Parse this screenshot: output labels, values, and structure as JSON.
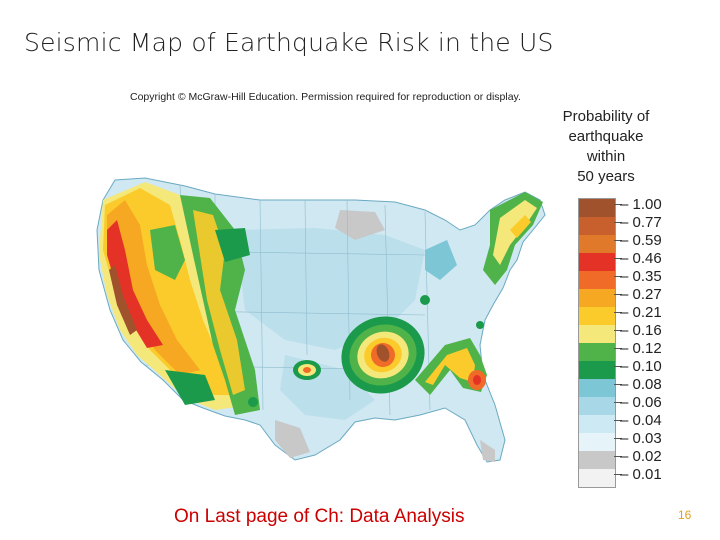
{
  "title": "Seismic Map of Earthquake Risk in the US",
  "copyright": "Copyright © McGraw-Hill Education. Permission required for reproduction or display.",
  "legend": {
    "title_lines": [
      "Probability of",
      "earthquake",
      "within",
      "50 years"
    ],
    "entries": [
      {
        "label": "1.00",
        "color": "#a0522d"
      },
      {
        "label": "0.77",
        "color": "#c8602e"
      },
      {
        "label": "0.59",
        "color": "#e07a2a"
      },
      {
        "label": "0.46",
        "color": "#e53227"
      },
      {
        "label": "0.35",
        "color": "#f06a28"
      },
      {
        "label": "0.27",
        "color": "#f7a823"
      },
      {
        "label": "0.21",
        "color": "#fbcb2b"
      },
      {
        "label": "0.16",
        "color": "#f5e87a"
      },
      {
        "label": "0.12",
        "color": "#4fb34a"
      },
      {
        "label": "0.10",
        "color": "#1a9a4a"
      },
      {
        "label": "0.08",
        "color": "#7cc6d6"
      },
      {
        "label": "0.06",
        "color": "#a8d8e8"
      },
      {
        "label": "0.04",
        "color": "#cde9f3"
      },
      {
        "label": "0.03",
        "color": "#e6f3f8"
      },
      {
        "label": "0.02",
        "color": "#c8c8c8"
      },
      {
        "label": "0.01",
        "color": "#f2f2f2"
      }
    ]
  },
  "caption": "On Last page of Ch: Data Analysis",
  "page_number": "16"
}
